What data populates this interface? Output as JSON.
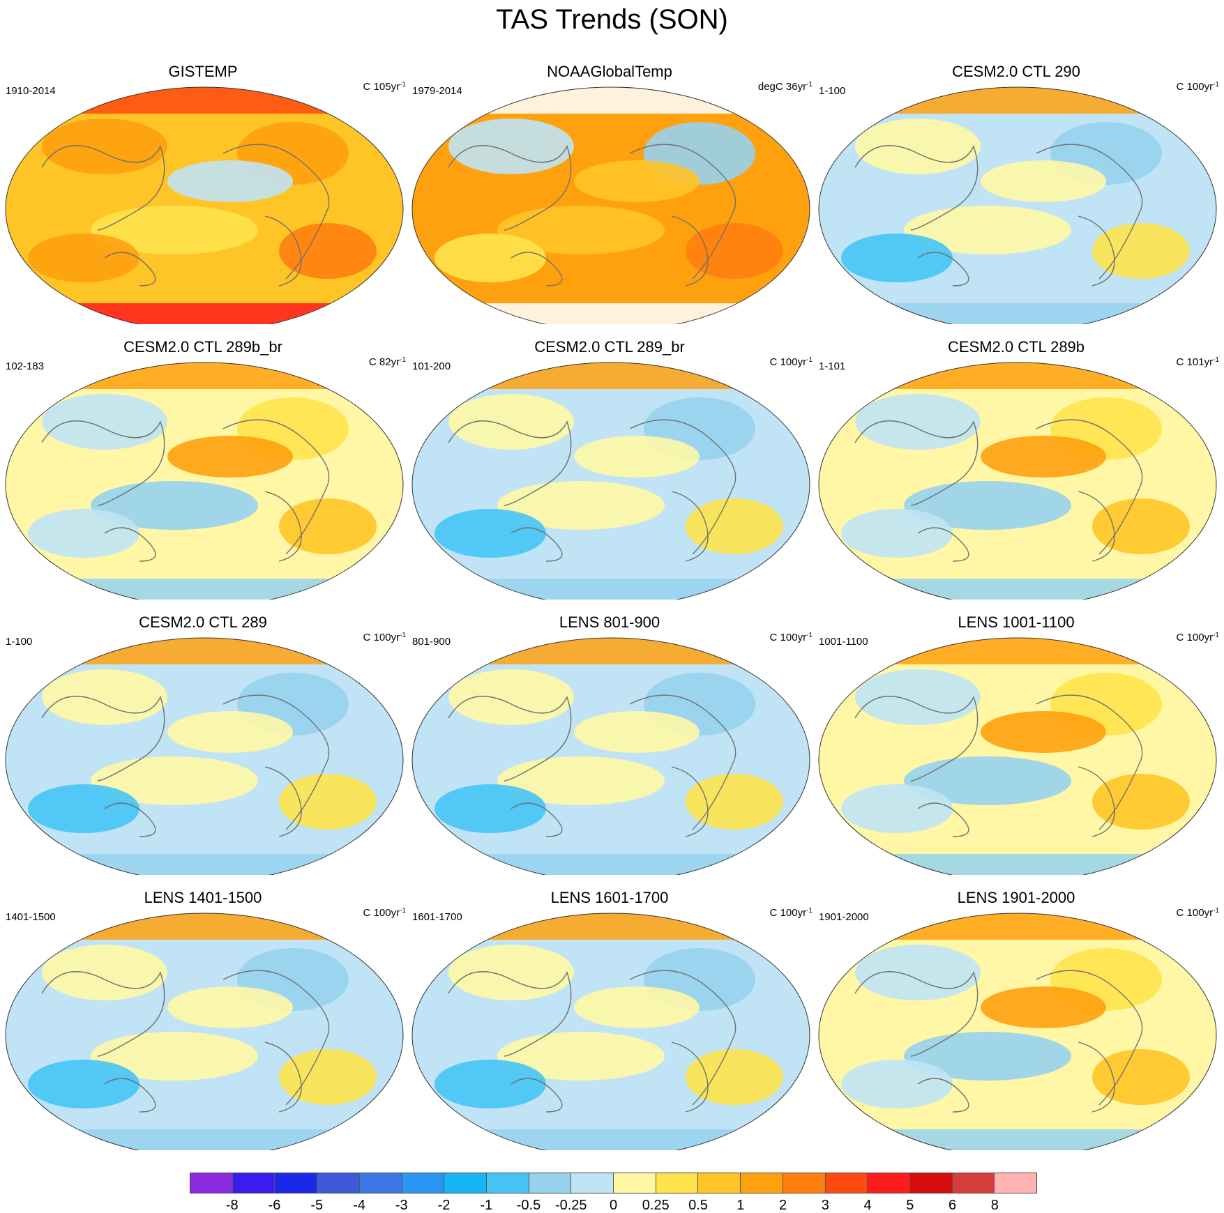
{
  "figure": {
    "title": "TAS Trends (SON)"
  },
  "panels": [
    {
      "title": "GISTEMP",
      "period": "1910-2014",
      "units": "C",
      "rate": "105yr",
      "exp": "-1",
      "scheme": "gis"
    },
    {
      "title": "NOAAGlobalTemp",
      "period": "1979-2014",
      "units": "degC",
      "rate": "36yr",
      "exp": "-1",
      "scheme": "noaa"
    },
    {
      "title": "CESM2.0 CTL 290",
      "period": "1-100",
      "units": "C",
      "rate": "100yr",
      "exp": "-1",
      "scheme": "mixcool"
    },
    {
      "title": "CESM2.0 CTL 289b_br",
      "period": "102-183",
      "units": "C",
      "rate": "82yr",
      "exp": "-1",
      "scheme": "mixwarm"
    },
    {
      "title": "CESM2.0 CTL 289_br",
      "period": "101-200",
      "units": "C",
      "rate": "100yr",
      "exp": "-1",
      "scheme": "mixcool"
    },
    {
      "title": "CESM2.0 CTL 289b",
      "period": "1-101",
      "units": "C",
      "rate": "101yr",
      "exp": "-1",
      "scheme": "mixwarm"
    },
    {
      "title": "CESM2.0 CTL 289",
      "period": "1-100",
      "units": "C",
      "rate": "100yr",
      "exp": "-1",
      "scheme": "mixcool"
    },
    {
      "title": "LENS 801-900",
      "period": "801-900",
      "units": "C",
      "rate": "100yr",
      "exp": "-1",
      "scheme": "mixcool"
    },
    {
      "title": "LENS 1001-1100",
      "period": "1001-1100",
      "units": "C",
      "rate": "100yr",
      "exp": "-1",
      "scheme": "mixwarm"
    },
    {
      "title": "LENS 1401-1500",
      "period": "1401-1500",
      "units": "C",
      "rate": "100yr",
      "exp": "-1",
      "scheme": "mixcool"
    },
    {
      "title": "LENS 1601-1700",
      "period": "1601-1700",
      "units": "C",
      "rate": "100yr",
      "exp": "-1",
      "scheme": "mixcool"
    },
    {
      "title": "LENS 1901-2000",
      "period": "1901-2000",
      "units": "C",
      "rate": "100yr",
      "exp": "-1",
      "scheme": "mixwarm"
    }
  ],
  "colorbar": {
    "colors": [
      "#8a2be2",
      "#3a1cf0",
      "#1c28e8",
      "#3c5ad8",
      "#3a78e6",
      "#2c96f4",
      "#17b4f6",
      "#46c4f6",
      "#96d2ee",
      "#c0e3f5",
      "#fff7a6",
      "#ffe34d",
      "#ffc426",
      "#ffa10f",
      "#ff7f0e",
      "#ff4a10",
      "#ff1c1c",
      "#d70e0e",
      "#d63e3e",
      "#ffb3b3"
    ],
    "labels": [
      "-8",
      "-6",
      "-5",
      "-4",
      "-3",
      "-2",
      "-1",
      "-0.5",
      "-0.25",
      "0",
      "0.25",
      "0.5",
      "1",
      "2",
      "3",
      "4",
      "5",
      "6",
      "8"
    ]
  }
}
